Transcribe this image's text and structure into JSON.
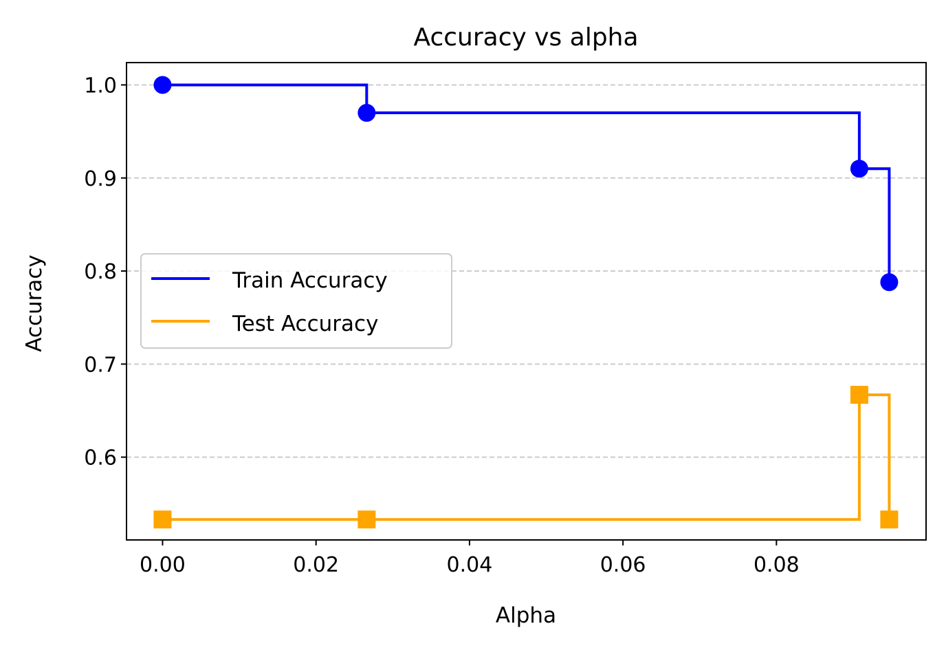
{
  "chart_data": {
    "type": "line",
    "title": "Accuracy vs alpha",
    "xlabel": "Alpha",
    "ylabel": "Accuracy",
    "step": "post",
    "xlim": [
      -0.0047,
      0.0995
    ],
    "ylim": [
      0.511,
      1.024
    ],
    "x_ticks": [
      0.0,
      0.02,
      0.04,
      0.06,
      0.08
    ],
    "x_tick_labels": [
      "0.00",
      "0.02",
      "0.04",
      "0.06",
      "0.08"
    ],
    "y_ticks": [
      0.6,
      0.7,
      0.8,
      0.9,
      1.0
    ],
    "y_tick_labels": [
      "0.6",
      "0.7",
      "0.8",
      "0.9",
      "1.0"
    ],
    "grid": "y-dashed",
    "legend_position": "center-left",
    "x": [
      0.0,
      0.0266,
      0.0908,
      0.0947
    ],
    "series": [
      {
        "name": "Train Accuracy",
        "color": "#0000ff",
        "marker": "circle",
        "values": [
          1.0,
          0.97,
          0.91,
          0.788
        ]
      },
      {
        "name": "Test Accuracy",
        "color": "#ffa500",
        "marker": "square",
        "values": [
          0.533,
          0.533,
          0.667,
          0.533
        ]
      }
    ]
  }
}
